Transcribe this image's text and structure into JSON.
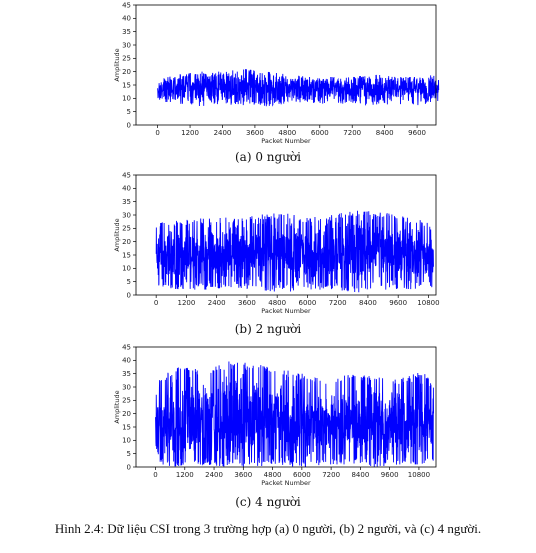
{
  "chart_data": [
    {
      "type": "line",
      "subcaption": "(a) 0 người",
      "xlabel": "Packet Number",
      "ylabel": "Amplitude",
      "xlim": [
        -800,
        10300
      ],
      "ylim": [
        0,
        45
      ],
      "xticks": [
        0,
        1200,
        2400,
        3600,
        4800,
        6000,
        7200,
        8400,
        9600
      ],
      "yticks": [
        0,
        5,
        10,
        15,
        20,
        25,
        30,
        35,
        40,
        45
      ],
      "grid": false,
      "series": [
        {
          "color": "#0000ff",
          "n_packets": 10400,
          "x": [
            0,
            800,
            1600,
            2400,
            3200,
            4000,
            4800,
            5600,
            6400,
            7200,
            8000,
            8800,
            9600,
            10400
          ],
          "upper": [
            17,
            19,
            20,
            20,
            21,
            20,
            19,
            18,
            18,
            18,
            19,
            18,
            18,
            19
          ],
          "lower": [
            9,
            8,
            7,
            8,
            7,
            7,
            8,
            8,
            8,
            8,
            7,
            8,
            7,
            9
          ],
          "mean": [
            13.5,
            14,
            14,
            14.5,
            14.5,
            14,
            14,
            14,
            14,
            13.5,
            13.5,
            13.5,
            13.5,
            14
          ]
        }
      ]
    },
    {
      "type": "line",
      "subcaption": "(b) 2 người",
      "xlabel": "Packet Number",
      "ylabel": "Amplitude",
      "xlim": [
        -800,
        11100
      ],
      "ylim": [
        0,
        45
      ],
      "xticks": [
        0,
        1200,
        2400,
        3600,
        4800,
        6000,
        7200,
        8400,
        9600,
        10800
      ],
      "yticks": [
        0,
        5,
        10,
        15,
        20,
        25,
        30,
        35,
        40,
        45
      ],
      "grid": false,
      "series": [
        {
          "color": "#0000ff",
          "n_packets": 11000,
          "x": [
            0,
            1000,
            2000,
            3000,
            4000,
            5000,
            6000,
            7000,
            8000,
            9000,
            10000,
            11000
          ],
          "upper": [
            27,
            28,
            29,
            29,
            30,
            31,
            29,
            30,
            32,
            31,
            29,
            27
          ],
          "lower": [
            3,
            2,
            2,
            3,
            2,
            1,
            2,
            2,
            1,
            2,
            2,
            3
          ],
          "mean": [
            14,
            15,
            15,
            15,
            16,
            16,
            15,
            16,
            16,
            16,
            15,
            15
          ]
        }
      ]
    },
    {
      "type": "line",
      "subcaption": "(c) 4 người",
      "xlabel": "Packet Number",
      "ylabel": "Amplitude",
      "xlim": [
        -800,
        11500
      ],
      "ylim": [
        0,
        45
      ],
      "xticks": [
        0,
        1200,
        2400,
        3600,
        4800,
        6000,
        7200,
        8400,
        9600,
        10800
      ],
      "yticks": [
        0,
        5,
        10,
        15,
        20,
        25,
        30,
        35,
        40,
        45
      ],
      "grid": false,
      "series": [
        {
          "color": "#0000ff",
          "n_packets": 11400,
          "x": [
            0,
            1000,
            2000,
            3000,
            4000,
            5000,
            6000,
            7000,
            8000,
            9000,
            10000,
            11000,
            11400
          ],
          "upper": [
            33,
            38,
            36,
            40,
            39,
            37,
            35,
            33,
            35,
            34,
            33,
            36,
            30
          ],
          "lower": [
            1,
            0,
            1,
            0,
            0,
            1,
            0,
            1,
            1,
            0,
            1,
            1,
            2
          ],
          "mean": [
            16,
            17,
            17,
            18,
            18,
            17,
            16,
            16,
            16,
            16,
            16,
            16,
            16
          ]
        }
      ]
    }
  ],
  "caption": "Hình 2.4: Dữ liệu CSI trong 3 trường hợp (a) 0 người, (b) 2 người, và (c) 4 người."
}
